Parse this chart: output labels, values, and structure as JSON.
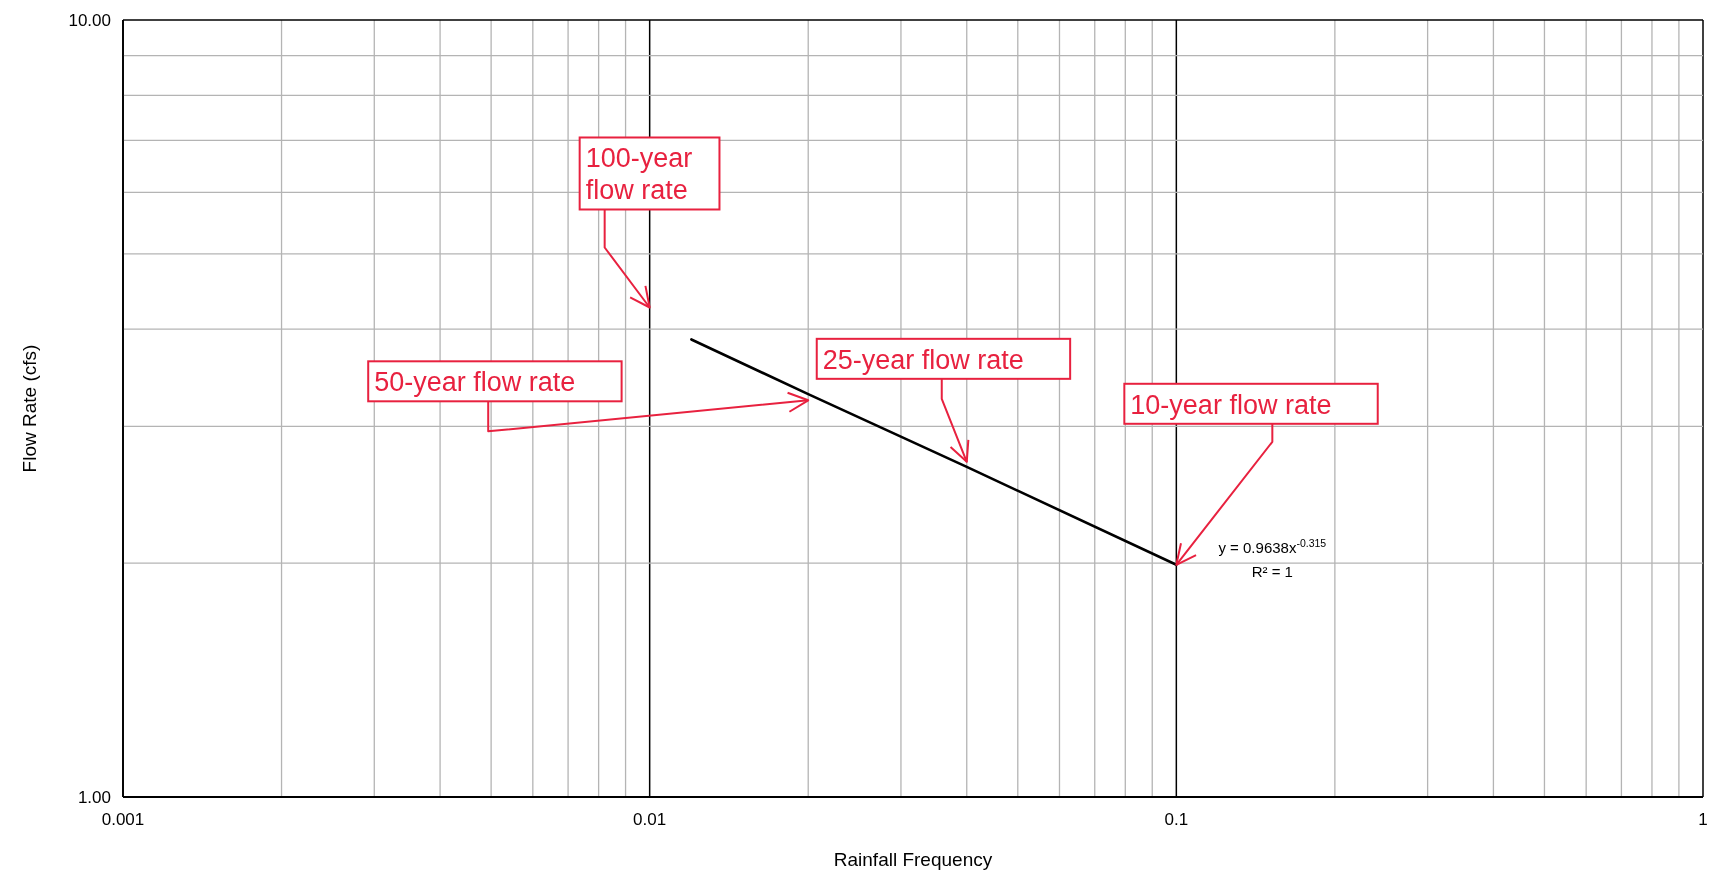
{
  "chart_data": {
    "type": "line",
    "xlabel": "Rainfall Frequency",
    "ylabel": "Flow Rate (cfs)",
    "log": "xy",
    "grid": true,
    "xlim": [
      0.001,
      1
    ],
    "ylim": [
      1,
      10
    ],
    "xticks": [
      {
        "value": 0.001,
        "label": "0.001"
      },
      {
        "value": 0.002,
        "label": null
      },
      {
        "value": 0.003,
        "label": null
      },
      {
        "value": 0.004,
        "label": null
      },
      {
        "value": 0.005,
        "label": null
      },
      {
        "value": 0.006,
        "label": null
      },
      {
        "value": 0.007,
        "label": null
      },
      {
        "value": 0.008,
        "label": null
      },
      {
        "value": 0.009,
        "label": null
      },
      {
        "value": 0.01,
        "label": "0.01"
      },
      {
        "value": 0.02,
        "label": null
      },
      {
        "value": 0.03,
        "label": null
      },
      {
        "value": 0.04,
        "label": null
      },
      {
        "value": 0.05,
        "label": null
      },
      {
        "value": 0.06,
        "label": null
      },
      {
        "value": 0.07,
        "label": null
      },
      {
        "value": 0.08,
        "label": null
      },
      {
        "value": 0.09,
        "label": null
      },
      {
        "value": 0.1,
        "label": "0.1"
      },
      {
        "value": 0.2,
        "label": null
      },
      {
        "value": 0.3,
        "label": null
      },
      {
        "value": 0.4,
        "label": null
      },
      {
        "value": 0.5,
        "label": null
      },
      {
        "value": 0.6,
        "label": null
      },
      {
        "value": 0.7,
        "label": null
      },
      {
        "value": 0.8,
        "label": null
      },
      {
        "value": 0.9,
        "label": null
      },
      {
        "value": 1,
        "label": "1"
      }
    ],
    "yticks": [
      {
        "value": 1,
        "label": "1.00"
      },
      {
        "value": 2,
        "label": null
      },
      {
        "value": 3,
        "label": null
      },
      {
        "value": 4,
        "label": null
      },
      {
        "value": 5,
        "label": null
      },
      {
        "value": 6,
        "label": null
      },
      {
        "value": 7,
        "label": null
      },
      {
        "value": 8,
        "label": null
      },
      {
        "value": 9,
        "label": null
      },
      {
        "value": 10,
        "label": "10.00"
      }
    ],
    "series": [
      {
        "color": "#000000",
        "x": [
          0.012,
          0.02,
          0.04,
          0.1
        ],
        "values": [
          3.88,
          3.3,
          2.66,
          1.99
        ]
      }
    ],
    "annotations": [
      "100-year flow rate",
      {
        "text": "50-year flow rate",
        "x": 0.02,
        "y": 3.24
      },
      {
        "text": "25-year flow rate",
        "x": 0.04,
        "y": 2.7
      },
      {
        "text": "10-year flow rate",
        "x": 0.1,
        "y": 1.99
      },
      "y = 0.9638x$^{-0.315}$",
      "R² = 1"
    ]
  }
}
